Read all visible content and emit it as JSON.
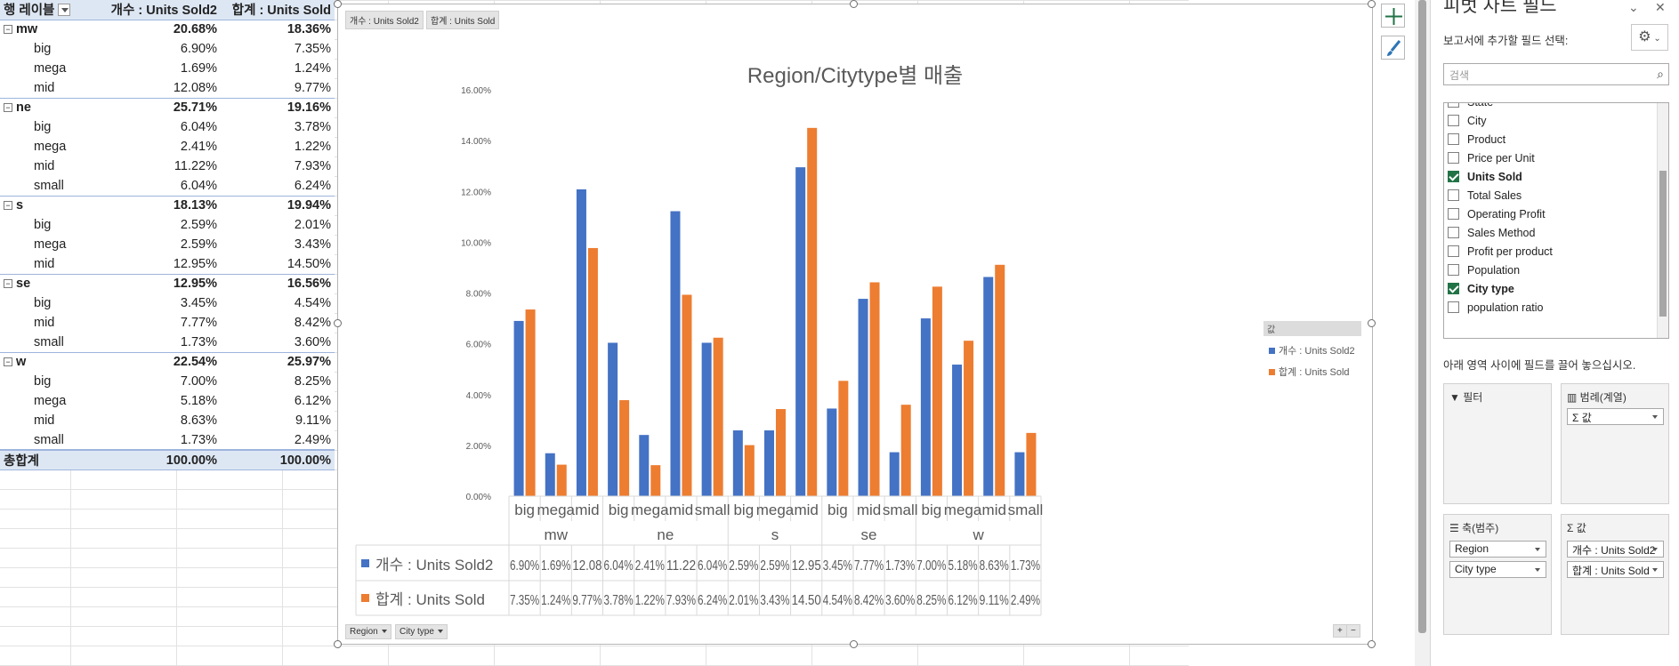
{
  "pivot": {
    "headers": {
      "row_label": "행 레이블",
      "col1": "개수 : Units Sold2",
      "col2": "합계 : Units Sold"
    },
    "rows": [
      {
        "label": "mw",
        "v1": "20.68%",
        "v2": "18.36%",
        "region": true
      },
      {
        "label": "big",
        "v1": "6.90%",
        "v2": "7.35%"
      },
      {
        "label": "mega",
        "v1": "1.69%",
        "v2": "1.24%"
      },
      {
        "label": "mid",
        "v1": "12.08%",
        "v2": "9.77%"
      },
      {
        "label": "ne",
        "v1": "25.71%",
        "v2": "19.16%",
        "region": true
      },
      {
        "label": "big",
        "v1": "6.04%",
        "v2": "3.78%"
      },
      {
        "label": "mega",
        "v1": "2.41%",
        "v2": "1.22%"
      },
      {
        "label": "mid",
        "v1": "11.22%",
        "v2": "7.93%"
      },
      {
        "label": "small",
        "v1": "6.04%",
        "v2": "6.24%"
      },
      {
        "label": "s",
        "v1": "18.13%",
        "v2": "19.94%",
        "region": true
      },
      {
        "label": "big",
        "v1": "2.59%",
        "v2": "2.01%"
      },
      {
        "label": "mega",
        "v1": "2.59%",
        "v2": "3.43%"
      },
      {
        "label": "mid",
        "v1": "12.95%",
        "v2": "14.50%"
      },
      {
        "label": "se",
        "v1": "12.95%",
        "v2": "16.56%",
        "region": true
      },
      {
        "label": "big",
        "v1": "3.45%",
        "v2": "4.54%"
      },
      {
        "label": "mid",
        "v1": "7.77%",
        "v2": "8.42%"
      },
      {
        "label": "small",
        "v1": "1.73%",
        "v2": "3.60%"
      },
      {
        "label": "w",
        "v1": "22.54%",
        "v2": "25.97%",
        "region": true
      },
      {
        "label": "big",
        "v1": "7.00%",
        "v2": "8.25%"
      },
      {
        "label": "mega",
        "v1": "5.18%",
        "v2": "6.12%"
      },
      {
        "label": "mid",
        "v1": "8.63%",
        "v2": "9.11%"
      },
      {
        "label": "small",
        "v1": "1.73%",
        "v2": "2.49%"
      }
    ],
    "total": {
      "label": "총합계",
      "v1": "100.00%",
      "v2": "100.00%"
    }
  },
  "chart_buttons": {
    "top1": "개수 : Units Sold2",
    "top2": "합계 : Units Sold",
    "bottom1": "Region",
    "bottom2": "City type"
  },
  "legend": {
    "title": "값",
    "items": [
      "개수 : Units Sold2",
      "합계 : Units Sold"
    ]
  },
  "colors": {
    "series1": "#4472c4",
    "series2": "#ed7d31"
  },
  "chart_data": {
    "type": "bar",
    "title": "Region/Citytype별 매출",
    "ylim": [
      0,
      16
    ],
    "y_ticks": [
      "0.00%",
      "2.00%",
      "4.00%",
      "6.00%",
      "8.00%",
      "10.00%",
      "12.00%",
      "14.00%",
      "16.00%"
    ],
    "groups": [
      {
        "name": "mw",
        "categories": [
          "big",
          "mega",
          "mid"
        ]
      },
      {
        "name": "ne",
        "categories": [
          "big",
          "mega",
          "mid",
          "small"
        ]
      },
      {
        "name": "s",
        "categories": [
          "big",
          "mega",
          "mid"
        ]
      },
      {
        "name": "se",
        "categories": [
          "big",
          "mid",
          "small"
        ]
      },
      {
        "name": "w",
        "categories": [
          "big",
          "mega",
          "mid",
          "small"
        ]
      }
    ],
    "series": [
      {
        "name": "개수 : Units Sold2",
        "values": [
          6.9,
          1.69,
          12.08,
          6.04,
          2.41,
          11.22,
          6.04,
          2.59,
          2.59,
          12.95,
          3.45,
          7.77,
          1.73,
          7.0,
          5.18,
          8.63,
          1.73
        ],
        "labels": [
          "6.90%",
          "1.69%",
          "12.08",
          "6.04%",
          "2.41%",
          "11.22",
          "6.04%",
          "2.59%",
          "2.59%",
          "12.95",
          "3.45%",
          "7.77%",
          "1.73%",
          "7.00%",
          "5.18%",
          "8.63%",
          "1.73%"
        ]
      },
      {
        "name": "합계 : Units Sold",
        "values": [
          7.35,
          1.24,
          9.77,
          3.78,
          1.22,
          7.93,
          6.24,
          2.01,
          3.43,
          14.5,
          4.54,
          8.42,
          3.6,
          8.25,
          6.12,
          9.11,
          2.49
        ],
        "labels": [
          "7.35%",
          "1.24%",
          "9.77%",
          "3.78%",
          "1.22%",
          "7.93%",
          "6.24%",
          "2.01%",
          "3.43%",
          "14.50",
          "4.54%",
          "8.42%",
          "3.60%",
          "8.25%",
          "6.12%",
          "9.11%",
          "2.49%"
        ]
      }
    ]
  },
  "panel": {
    "title": "피벗 차트 필드",
    "subtitle": "보고서에 추가할 필드 선택:",
    "search_placeholder": "검색",
    "fields": [
      {
        "label": "State",
        "checked": false
      },
      {
        "label": "City",
        "checked": false
      },
      {
        "label": "Product",
        "checked": false
      },
      {
        "label": "Price per Unit",
        "checked": false
      },
      {
        "label": "Units Sold",
        "checked": true
      },
      {
        "label": "Total Sales",
        "checked": false
      },
      {
        "label": "Operating Profit",
        "checked": false
      },
      {
        "label": "Sales Method",
        "checked": false
      },
      {
        "label": "Profit per product",
        "checked": false
      },
      {
        "label": "Population",
        "checked": false
      },
      {
        "label": "City type",
        "checked": true
      },
      {
        "label": "population ratio",
        "checked": false
      }
    ],
    "areas_hint": "아래 영역 사이에 필드를 끌어 놓으십시오.",
    "filter_title": "필터",
    "legend_title": "범례(계열)",
    "legend_items": [
      "Σ 값"
    ],
    "axis_title": "축(범주)",
    "axis_items": [
      "Region",
      "City type"
    ],
    "values_title": "값",
    "values_items": [
      "개수 : Units Sold2",
      "합계 : Units Sold"
    ]
  }
}
